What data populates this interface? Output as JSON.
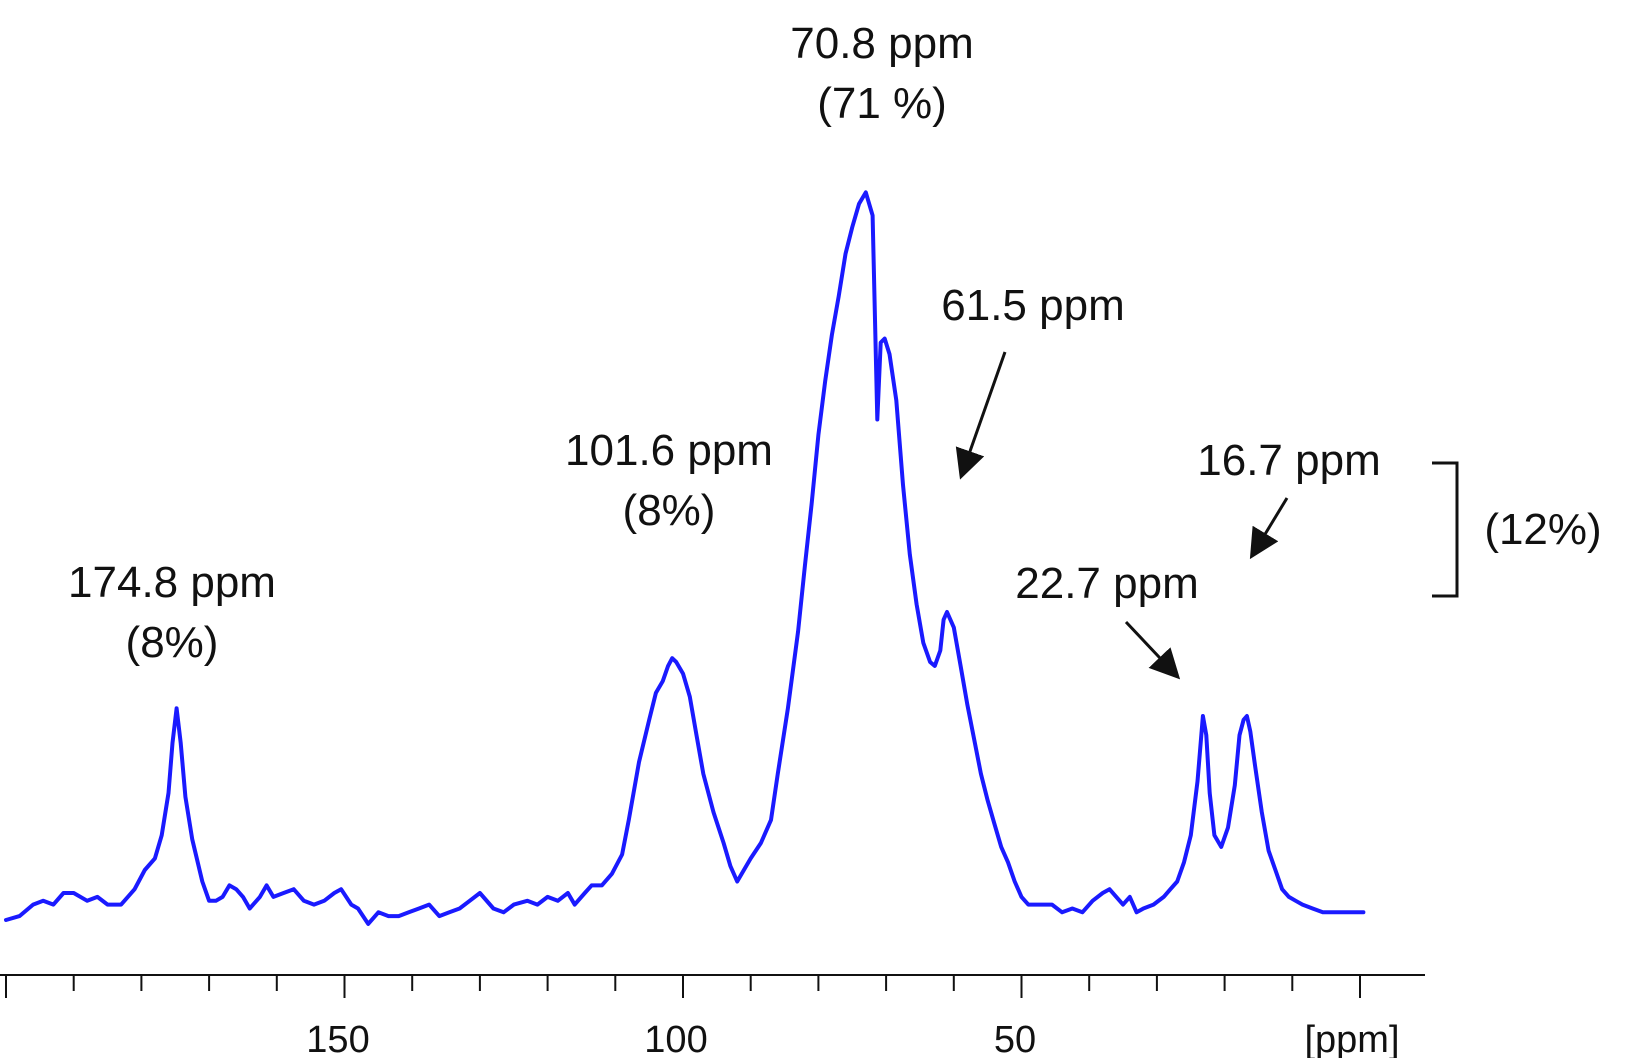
{
  "chart_data": {
    "type": "line",
    "xlabel": "[ppm]",
    "ylabel": "",
    "xlim": [
      202,
      -4
    ],
    "x_reversed": true,
    "grid": false,
    "tick_labels": [
      "150",
      "100",
      "50"
    ],
    "tick_values": [
      150,
      100,
      50
    ],
    "series": [
      {
        "color": "#1a1aff",
        "x": [
          200.0,
          198.0,
          196.0,
          194.5,
          193.0,
          191.5,
          190.0,
          188.0,
          186.5,
          185.0,
          183.0,
          181.0,
          179.5,
          178.0,
          177.0,
          176.0,
          175.4,
          174.8,
          174.2,
          173.5,
          172.5,
          171.0,
          170.0,
          169.0,
          168.0,
          167.0,
          166.0,
          165.0,
          164.0,
          162.5,
          161.5,
          160.5,
          159.0,
          157.5,
          156.0,
          154.5,
          153.0,
          151.5,
          150.5,
          149.0,
          148.0,
          146.5,
          145.0,
          143.5,
          142.0,
          140.5,
          139.0,
          137.5,
          136.0,
          134.5,
          133.0,
          131.5,
          130.0,
          128.0,
          126.5,
          125.0,
          123.0,
          121.5,
          120.0,
          118.5,
          117.0,
          116.0,
          114.5,
          113.5,
          112.0,
          110.5,
          109.0,
          108.0,
          106.5,
          105.0,
          104.0,
          103.0,
          102.2,
          101.6,
          101.0,
          100.0,
          99.0,
          98.0,
          97.0,
          95.5,
          94.0,
          93.0,
          92.0,
          91.0,
          90.0,
          88.5,
          87.0,
          86.0,
          84.5,
          83.0,
          82.0,
          81.0,
          80.0,
          79.0,
          78.0,
          77.0,
          76.0,
          75.0,
          74.0,
          73.0,
          72.0,
          71.3,
          70.8,
          70.2,
          69.5,
          68.5,
          67.5,
          66.5,
          65.5,
          64.5,
          63.5,
          62.8,
          62.0,
          61.5,
          61.0,
          60.0,
          59.0,
          58.0,
          57.0,
          56.0,
          55.0,
          54.0,
          53.0,
          52.0,
          51.0,
          50.0,
          49.0,
          48.0,
          47.0,
          45.5,
          44.0,
          42.5,
          41.0,
          39.5,
          38.0,
          37.0,
          36.0,
          35.0,
          34.0,
          33.0,
          32.0,
          30.5,
          29.0,
          28.0,
          27.0,
          26.0,
          25.0,
          24.0,
          23.2,
          22.7,
          22.2,
          21.5,
          20.5,
          19.5,
          18.5,
          17.8,
          17.2,
          16.7,
          16.2,
          15.5,
          14.5,
          13.5,
          12.5,
          11.5,
          10.5,
          9.5,
          8.5,
          7.0,
          5.5,
          4.5,
          3.5,
          2.5,
          1.5,
          0.5,
          -0.5
        ],
        "y": [
          0.0,
          0.1,
          0.4,
          0.5,
          0.4,
          0.7,
          0.7,
          0.5,
          0.6,
          0.4,
          0.4,
          0.8,
          1.3,
          1.6,
          2.2,
          3.3,
          4.6,
          5.5,
          4.6,
          3.2,
          2.1,
          1.0,
          0.5,
          0.5,
          0.6,
          0.9,
          0.8,
          0.6,
          0.3,
          0.6,
          0.9,
          0.6,
          0.7,
          0.8,
          0.5,
          0.4,
          0.5,
          0.7,
          0.8,
          0.4,
          0.3,
          -0.1,
          0.2,
          0.1,
          0.1,
          0.2,
          0.3,
          0.4,
          0.1,
          0.2,
          0.3,
          0.5,
          0.7,
          0.3,
          0.2,
          0.4,
          0.5,
          0.4,
          0.6,
          0.5,
          0.7,
          0.4,
          0.7,
          0.9,
          0.9,
          1.2,
          1.7,
          2.6,
          4.1,
          5.2,
          5.9,
          6.2,
          6.6,
          6.8,
          6.7,
          6.4,
          5.8,
          4.8,
          3.8,
          2.8,
          2.0,
          1.4,
          1.0,
          1.3,
          1.6,
          2.0,
          2.6,
          3.8,
          5.5,
          7.5,
          9.2,
          10.8,
          12.6,
          14.0,
          15.2,
          16.2,
          17.3,
          18.0,
          18.6,
          18.9,
          18.3,
          13.0,
          15.0,
          15.1,
          14.7,
          13.5,
          11.3,
          9.5,
          8.2,
          7.2,
          6.7,
          6.6,
          7.0,
          7.8,
          8.0,
          7.6,
          6.6,
          5.6,
          4.7,
          3.8,
          3.1,
          2.5,
          1.9,
          1.5,
          1.0,
          0.6,
          0.4,
          0.4,
          0.4,
          0.4,
          0.2,
          0.3,
          0.2,
          0.5,
          0.7,
          0.8,
          0.6,
          0.4,
          0.6,
          0.2,
          0.3,
          0.4,
          0.6,
          0.8,
          1.0,
          1.5,
          2.2,
          3.6,
          5.3,
          4.8,
          3.3,
          2.2,
          1.9,
          2.4,
          3.5,
          4.8,
          5.2,
          5.3,
          4.9,
          4.0,
          2.8,
          1.8,
          1.3,
          0.8,
          0.6,
          0.5,
          0.4,
          0.3,
          0.2,
          0.2,
          0.2,
          0.2,
          0.2,
          0.2,
          0.2
        ]
      }
    ],
    "annotations": [
      {
        "lines": [
          "174.8 ppm",
          "(8%)"
        ]
      },
      {
        "lines": [
          "101.6 ppm",
          "(8%)"
        ]
      },
      {
        "lines": [
          "70.8 ppm",
          "(71 %)"
        ]
      },
      {
        "lines": [
          "61.5 ppm"
        ]
      },
      {
        "lines": [
          "22.7 ppm"
        ]
      },
      {
        "lines": [
          "16.7 ppm"
        ]
      },
      {
        "lines": [
          "(12%)"
        ]
      }
    ]
  }
}
